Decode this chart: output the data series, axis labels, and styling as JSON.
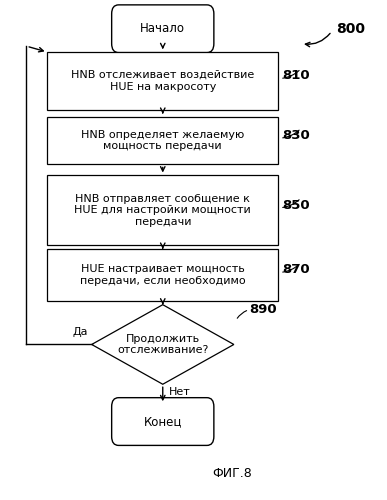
{
  "title": "ФИГ.8",
  "label_800": "800",
  "start_text": "Начало",
  "end_text": "Конец",
  "box810_text": "HNB отслеживает воздействие\nHUE на макросоту",
  "box810_label": "810",
  "box830_text": "HNB определяет желаемую\nмощность передачи",
  "box830_label": "830",
  "box850_text": "HNB отправляет сообщение к\nHUE для настройки мощности\nпередачи",
  "box850_label": "850",
  "box870_text": "HUE настраивает мощность\nпередачи, если необходимо",
  "box870_label": "870",
  "diamond890_text": "Продолжить\nотслеживание?",
  "diamond890_label": "890",
  "yes_label": "Да",
  "no_label": "Нет",
  "bg_color": "#ffffff",
  "box_color": "#ffffff",
  "box_edge": "#000000",
  "arrow_color": "#000000",
  "text_color": "#000000",
  "font_size": 8.0,
  "label_fontsize": 9.5
}
